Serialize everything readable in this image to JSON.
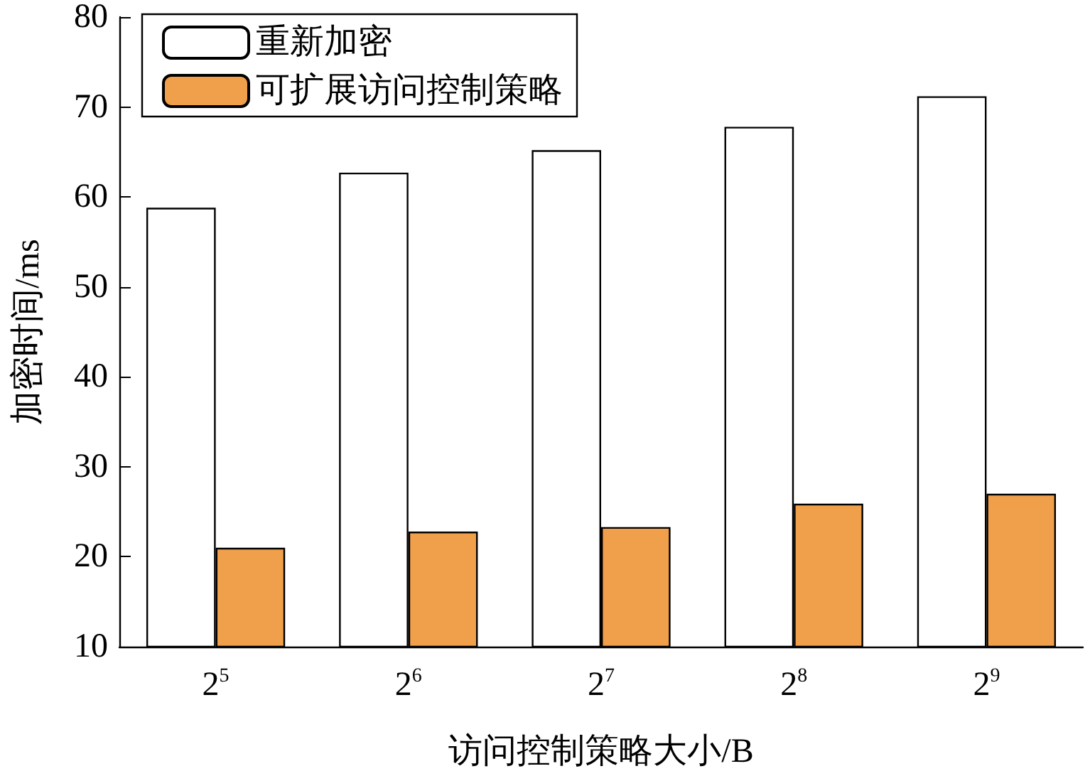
{
  "chart_data": {
    "type": "bar",
    "xlabel": "访问控制策略大小/B",
    "ylabel": "加密时间/ms",
    "categories": [
      "2$^{5}$",
      "2$^{6}$",
      "2$^{7}$",
      "2$^{8}$",
      "2$^{9}$"
    ],
    "series": [
      {
        "name": "重新加密",
        "color": "#ffffff",
        "values": [
          58.8,
          62.7,
          65.2,
          67.8,
          71.2
        ]
      },
      {
        "name": "可扩展访问控制策略",
        "color": "#f0a04b",
        "values": [
          21.0,
          22.8,
          23.3,
          25.9,
          27.0
        ]
      }
    ],
    "ylim": [
      10,
      80
    ],
    "yticks": [
      10,
      20,
      30,
      40,
      50,
      60,
      70,
      80
    ],
    "grid": false,
    "legend": "top left"
  }
}
